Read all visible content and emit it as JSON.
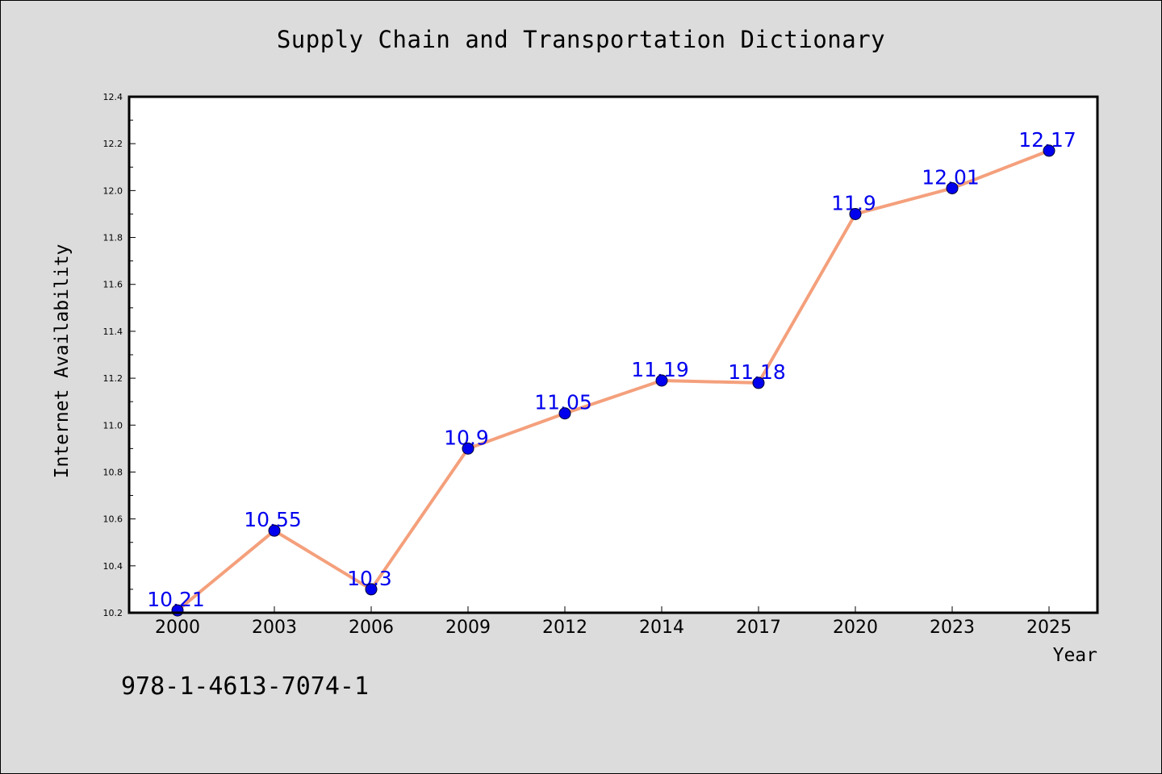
{
  "chart_data": {
    "type": "line",
    "title": "Supply Chain and Transportation Dictionary",
    "xlabel": "Year",
    "ylabel": "Internet Availability",
    "categories": [
      "2000",
      "2003",
      "2006",
      "2009",
      "2012",
      "2014",
      "2017",
      "2020",
      "2023",
      "2025"
    ],
    "series": [
      {
        "values": [
          10.21,
          10.55,
          10.3,
          10.9,
          11.05,
          11.19,
          11.18,
          11.9,
          12.01,
          12.17
        ],
        "labels": [
          "10.21",
          "10.55",
          "10.3",
          "10.9",
          "11.05",
          "11.19",
          "11.18",
          "11.9",
          "12.01",
          "12.17"
        ]
      }
    ],
    "ylim": [
      10.2,
      12.4
    ],
    "yticks": [
      "10.2",
      "10.4",
      "10.6",
      "10.8",
      "11.0",
      "11.2",
      "11.4",
      "11.6",
      "11.8",
      "12.0",
      "12.2",
      "12.4"
    ],
    "grid": false,
    "line_color": "#f4a07c",
    "marker_color": "#0000ee",
    "label_color": "#0000ee"
  },
  "footer": {
    "isbn": "978-1-4613-7074-1"
  }
}
